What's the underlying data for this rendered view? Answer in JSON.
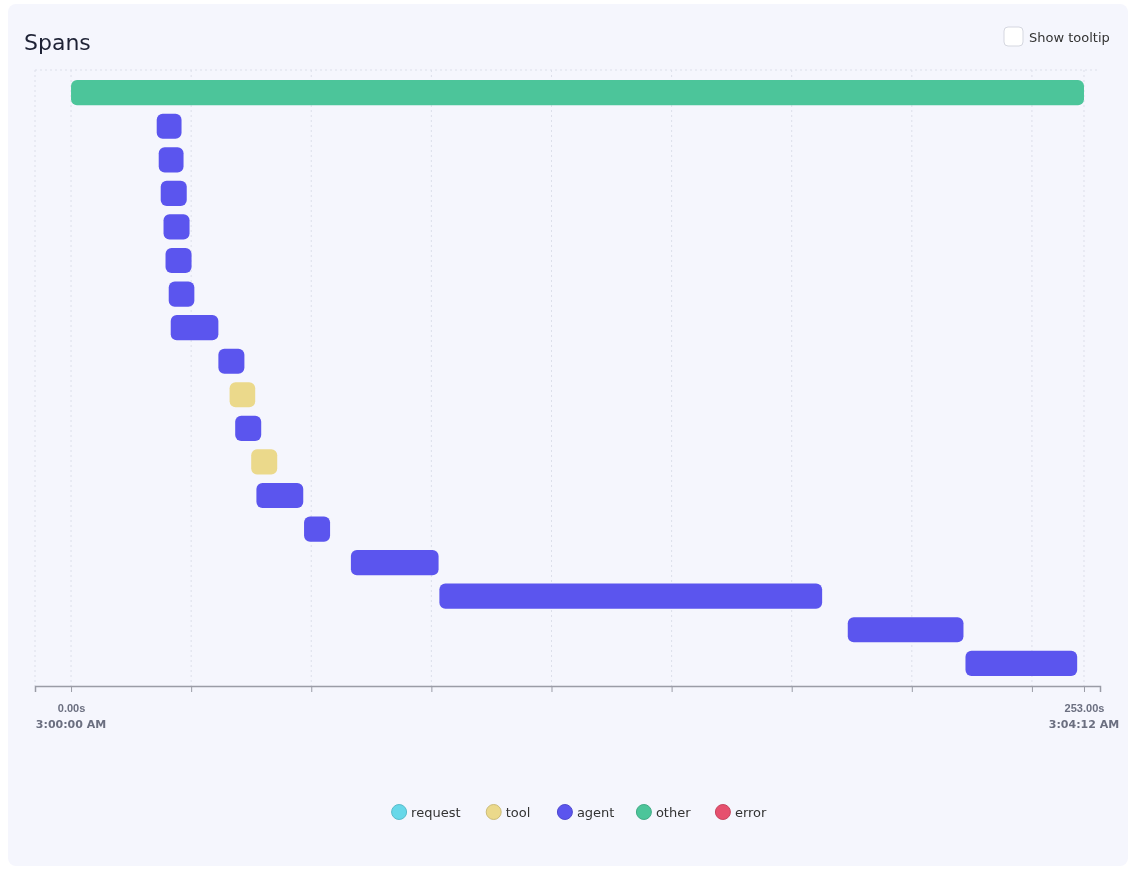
{
  "chart_data": {
    "type": "bar",
    "orientation": "horizontal",
    "title": "Spans",
    "categories": [
      null,
      null,
      null,
      null,
      null,
      null,
      null,
      null,
      null,
      null,
      null,
      null,
      null,
      null,
      null,
      null,
      null,
      null
    ],
    "series": [
      {
        "name": "request",
        "color": "#67d8e9",
        "values": [
          null,
          null,
          null,
          null,
          null,
          null,
          null,
          null,
          null,
          null,
          null,
          null,
          null,
          null,
          null,
          null,
          null,
          null
        ],
        "base": [
          null,
          null,
          null,
          null,
          null,
          null,
          null,
          null,
          null,
          null,
          null,
          null,
          null,
          null,
          null,
          null,
          null,
          null
        ]
      },
      {
        "name": "tool",
        "color": "#ebd98b",
        "values": [
          null,
          null,
          null,
          null,
          null,
          null,
          null,
          null,
          null,
          6.4,
          null,
          6.5,
          null,
          null,
          null,
          null,
          null,
          null
        ],
        "base": [
          null,
          null,
          null,
          null,
          null,
          null,
          null,
          null,
          null,
          39.6,
          null,
          45.0,
          null,
          null,
          null,
          null,
          null,
          null
        ]
      },
      {
        "name": "agent",
        "color": "#5b55ee",
        "values": [
          null,
          6.2,
          6.2,
          6.5,
          6.5,
          6.5,
          6.4,
          11.9,
          6.5,
          null,
          6.5,
          null,
          11.7,
          6.5,
          21.9,
          95.6,
          28.9,
          27.9
        ],
        "base": [
          null,
          21.4,
          21.9,
          22.4,
          23.1,
          23.6,
          24.4,
          24.9,
          36.8,
          null,
          41.0,
          null,
          46.3,
          58.2,
          69.9,
          92.0,
          194.0,
          223.4
        ]
      },
      {
        "name": "other",
        "color": "#4cc59a",
        "values": [
          253,
          null,
          null,
          null,
          null,
          null,
          null,
          null,
          null,
          null,
          null,
          null,
          null,
          null,
          null,
          null,
          null,
          null
        ],
        "base": [
          0,
          null,
          null,
          null,
          null,
          null,
          null,
          null,
          null,
          null,
          null,
          null,
          null,
          null,
          null,
          null,
          null,
          null
        ]
      },
      {
        "name": "error",
        "color": "#e6506e",
        "values": [
          null,
          null,
          null,
          null,
          null,
          null,
          null,
          null,
          null,
          null,
          null,
          null,
          null,
          null,
          null,
          null,
          null,
          null
        ],
        "base": [
          null,
          null,
          null,
          null,
          null,
          null,
          null,
          null,
          null,
          null,
          null,
          null,
          null,
          null,
          null,
          null,
          null,
          null
        ]
      }
    ],
    "xlim": [
      -9,
      257
    ],
    "xticks": [
      {
        "value": 0,
        "label": "0.00s"
      },
      {
        "value": 30,
        "label": null
      },
      {
        "value": 60,
        "label": null
      },
      {
        "value": 90,
        "label": null
      },
      {
        "value": 120,
        "label": null
      },
      {
        "value": 150,
        "label": null
      },
      {
        "value": 180,
        "label": null
      },
      {
        "value": 210,
        "label": null
      },
      {
        "value": 240,
        "label": null
      },
      {
        "value": 253,
        "label": "253.00s"
      }
    ],
    "grid": "x",
    "legend": "bottom",
    "annotations": [
      "Show tooltip",
      "3:00:00 AM",
      "3:04:12 AM"
    ]
  }
}
